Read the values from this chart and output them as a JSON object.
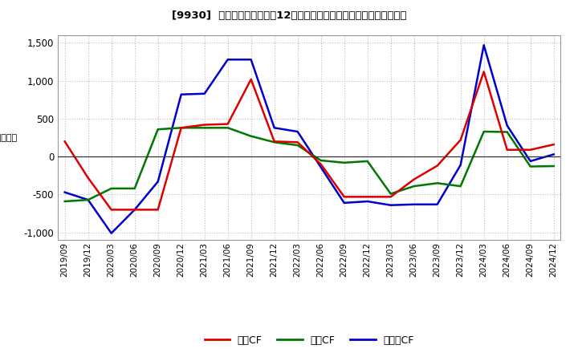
{
  "title": "[9930]  キャッシュフローの12か月移動合計の対前年同期増減額の推移",
  "ylim": [
    -1100,
    1600
  ],
  "yticks": [
    -1000,
    -500,
    0,
    500,
    1000,
    1500
  ],
  "background_color": "#ffffff",
  "plot_bg_color": "#ffffff",
  "grid_color": "#bbbbbb",
  "x_labels": [
    "2019/09",
    "2019/12",
    "2020/03",
    "2020/06",
    "2020/09",
    "2020/12",
    "2021/03",
    "2021/06",
    "2021/09",
    "2021/12",
    "2022/03",
    "2022/06",
    "2022/09",
    "2022/12",
    "2023/03",
    "2023/06",
    "2023/09",
    "2023/12",
    "2024/03",
    "2024/06",
    "2024/09",
    "2024/12"
  ],
  "operating_cf": [
    200,
    -280,
    -700,
    -700,
    -700,
    380,
    420,
    430,
    1020,
    200,
    190,
    -100,
    -530,
    -530,
    -530,
    -300,
    -120,
    220,
    1120,
    90,
    90,
    160
  ],
  "investing_cf": [
    -590,
    -570,
    -420,
    -420,
    360,
    380,
    380,
    380,
    270,
    190,
    150,
    -50,
    -80,
    -60,
    -490,
    -390,
    -350,
    -390,
    330,
    325,
    -130,
    -125
  ],
  "free_cf": [
    -470,
    -570,
    -1010,
    -700,
    -330,
    820,
    830,
    1280,
    1280,
    380,
    330,
    -140,
    -610,
    -590,
    -640,
    -630,
    -630,
    -110,
    1470,
    410,
    -60,
    30
  ],
  "line_colors": {
    "operating": "#dd0000",
    "investing": "#007700",
    "free": "#0000cc"
  },
  "legend_labels": [
    "営業CF",
    "投資CF",
    "フリーCF"
  ]
}
